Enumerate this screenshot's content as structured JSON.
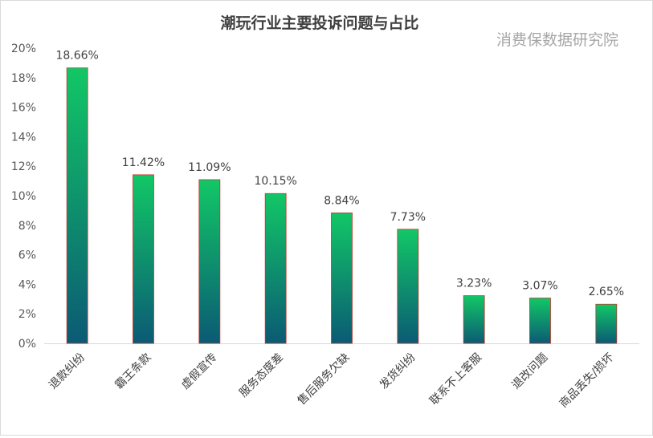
{
  "chart_data": {
    "type": "bar",
    "title": "潮玩行业主要投诉问题与占比",
    "watermark": "消费保数据研究院",
    "categories": [
      "退款纠纷",
      "霸王条款",
      "虚假宣传",
      "服务态度差",
      "售后服务欠缺",
      "发货纠纷",
      "联系不上客服",
      "退改问题",
      "商品丢失/损坏"
    ],
    "values": [
      18.66,
      11.42,
      11.09,
      10.15,
      8.84,
      7.73,
      3.23,
      3.07,
      2.65
    ],
    "value_labels": [
      "18.66%",
      "11.42%",
      "11.09%",
      "10.15%",
      "8.84%",
      "7.73%",
      "3.23%",
      "3.07%",
      "2.65%"
    ],
    "yticks": [
      "0%",
      "2%",
      "4%",
      "6%",
      "8%",
      "10%",
      "12%",
      "14%",
      "16%",
      "18%",
      "20%"
    ],
    "ylim": [
      0,
      20
    ],
    "grid": false,
    "legend": "none",
    "colors": {
      "bar_top": "#12c766",
      "bar_bottom": "#0b5a74",
      "bar_outline": "#c0392b",
      "axis": "#d9d9d9"
    }
  }
}
